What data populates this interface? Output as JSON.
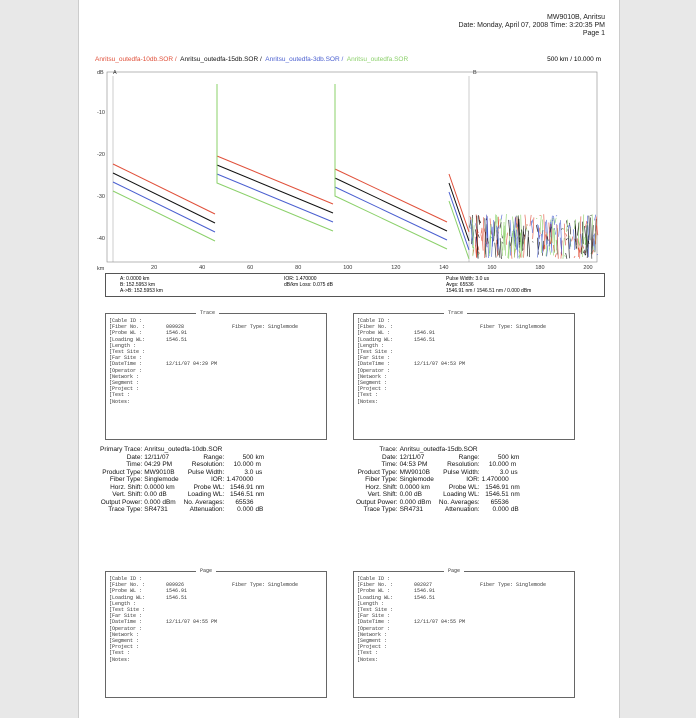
{
  "header": {
    "model": "MW9010B, Anritsu",
    "date_line": "Date: Monday, April 07, 2008   Time: 3:20:35 PM",
    "page": "Page 1"
  },
  "legend": {
    "trace1": "Anritsu_outedfa-10db.SOR /",
    "trace2": "Anritsu_outedfa-15db.SOR /",
    "trace3": "Anritsu_outedfa-3db.SOR /",
    "trace4": "Anritsu_outedfa.SOR",
    "scale": "500 km / 10.000 m"
  },
  "colors": {
    "red": "#e0503a",
    "black": "#111111",
    "blue": "#4a5fd0",
    "green": "#8bd06a"
  },
  "chart_data": {
    "type": "line",
    "ylabel": "dB",
    "xlabel": "km",
    "marker_a": "A",
    "marker_b": "B",
    "marker_ab": "A",
    "x_ticks": [
      "20",
      "40",
      "60",
      "80",
      "100",
      "120",
      "140",
      "160",
      "180",
      "200"
    ],
    "y_ticks": [
      "-10",
      "-20",
      "-30",
      "-40"
    ]
  },
  "measure": {
    "a": "A:     0.0000 km",
    "b": "B:  152.5953 km",
    "ab": "A->B:  152.5953 km",
    "ior": "IOR: 1.470000",
    "loss": "dB/km Loss:  0.075 dB",
    "pulse": "Pulse Width: 3.0 us",
    "avgs": "Avgs: 65536",
    "wl": "1546.91 nm / 1546.51 nm / 0.000 dBm"
  },
  "boxes": [
    {
      "title": "Trace",
      "rows": [
        "[Cable ID :",
        "[Fiber No. :",
        "[Probe WL :",
        "[Loading WL:",
        "[Length :",
        "[Test Site :",
        "[Far Site :",
        "[DateTime :",
        "[Operator :",
        "[Network :",
        "[Segment :",
        "[Project :",
        "[Test :",
        "[Notes:"
      ],
      "v1": [
        "",
        "009928",
        "1546.91",
        "1546.51",
        "",
        "",
        "",
        "12/11/07  04:29 PM",
        "",
        "",
        "",
        "",
        "",
        ""
      ],
      "extra": "Fiber Type: Singlemode"
    },
    {
      "title": "Trace",
      "rows": [
        "[Cable ID :",
        "[Fiber No. :",
        "[Probe WL :",
        "[Loading WL:",
        "[Length :",
        "[Test Site :",
        "[Far Site :",
        "[DateTime :",
        "[Operator :",
        "[Network :",
        "[Segment :",
        "[Project :",
        "[Test :",
        "[Notes:"
      ],
      "v1": [
        "",
        "",
        "1546.91",
        "1546.51",
        "",
        "",
        "",
        "12/11/07  04:53 PM",
        "",
        "",
        "",
        "",
        "",
        ""
      ],
      "extra": "Fiber Type: Singlemode"
    },
    {
      "title": "Page",
      "rows": [
        "[Cable ID :",
        "[Fiber No. :",
        "[Probe WL :",
        "[Loading WL:",
        "[Length :",
        "[Test Site :",
        "[Far Site :",
        "[DateTime :",
        "[Operator :",
        "[Network :",
        "[Segment :",
        "[Project :",
        "[Test :",
        "[Notes:"
      ],
      "v1": [
        "",
        "009926",
        "1546.91",
        "1546.51",
        "",
        "",
        "",
        "12/11/07  04:55 PM",
        "",
        "",
        "",
        "",
        "",
        ""
      ],
      "extra": "Fiber Type: Singlemode"
    },
    {
      "title": "Page",
      "rows": [
        "[Cable ID :",
        "[Fiber No. :",
        "[Probe WL :",
        "[Loading WL:",
        "[Length :",
        "[Test Site :",
        "[Far Site :",
        "[DateTime :",
        "[Operator :",
        "[Network :",
        "[Segment :",
        "[Project :",
        "[Test :",
        "[Notes:"
      ],
      "v1": [
        "",
        "002027",
        "1546.91",
        "1546.51",
        "",
        "",
        "",
        "12/11/07  04:55 PM",
        "",
        "",
        "",
        "",
        "",
        ""
      ],
      "extra": "Fiber Type: Singlemode"
    }
  ],
  "primary": {
    "title_k": "Primary Trace:",
    "title_v": "Anritsu_outedfa-10db.SOR",
    "rows": [
      [
        "Date:",
        "12/11/07",
        "Range:",
        "500",
        "km"
      ],
      [
        "Time:",
        "04:29 PM",
        "Resolution:",
        "10.000",
        "m"
      ],
      [
        "Product Type:",
        "MW9010B",
        "Pulse Width:",
        "3.0",
        "us"
      ],
      [
        "Fiber Type:",
        "Singlemode",
        "IOR:",
        "1.470000",
        ""
      ],
      [
        "Horz. Shift:",
        "0.0000 km",
        "Probe WL:",
        "1546.91",
        "nm"
      ],
      [
        "Vert. Shift:",
        "0.00 dB",
        "Loading WL:",
        "1546.51",
        "nm"
      ],
      [
        "Output Power:",
        "0.000 dBm",
        "No. Averages:",
        "65536",
        ""
      ],
      [
        "Trace Type:",
        "SR4731",
        "Attenuation:",
        "0.000",
        "dB"
      ]
    ]
  },
  "secondary": {
    "title_k": "Trace:",
    "title_v": "Anritsu_outedfa-15db.SOR",
    "rows": [
      [
        "Date:",
        "12/11/07",
        "Range:",
        "500",
        "km"
      ],
      [
        "Time:",
        "04:53 PM",
        "Resolution:",
        "10.000",
        "m"
      ],
      [
        "Product Type:",
        "MW9010B",
        "Pulse Width:",
        "3.0",
        "us"
      ],
      [
        "Fiber Type:",
        "Singlemode",
        "IOR:",
        "1.470000",
        ""
      ],
      [
        "Horz. Shift:",
        "0.0000 km",
        "Probe WL:",
        "1546.91",
        "nm"
      ],
      [
        "Vert. Shift:",
        "0.00 dB",
        "Loading WL:",
        "1546.51",
        "nm"
      ],
      [
        "Output Power:",
        "0.000 dBm",
        "No. Averages:",
        "65536",
        ""
      ],
      [
        "Trace Type:",
        "SR4731",
        "Attenuation:",
        "0.000",
        "dB"
      ]
    ]
  }
}
